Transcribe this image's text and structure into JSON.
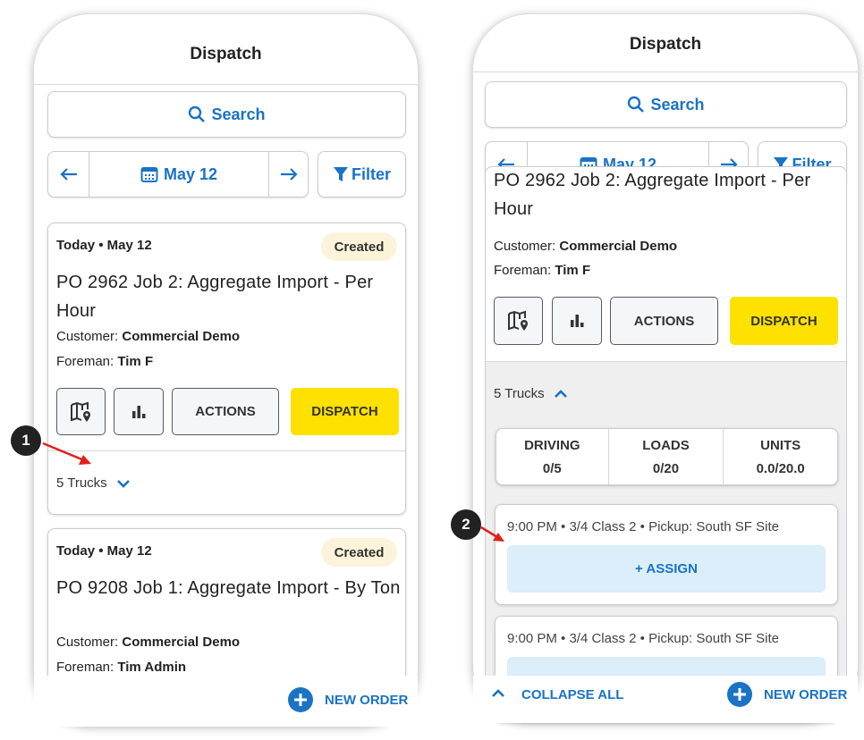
{
  "screens": [
    {
      "header": {
        "title": "Dispatch"
      },
      "toolbar": {
        "search": "Search",
        "date": "May 12",
        "filter": "Filter"
      },
      "orders": [
        {
          "date": "Today • May 12",
          "status": "Created",
          "title": "PO 2962 Job 2: Aggregate Import - Per Hour",
          "customer_label": "Customer:",
          "customer": "Commercial Demo",
          "foreman_label": "Foreman:",
          "foreman": "Tim F",
          "actions": "ACTIONS",
          "dispatch": "DISPATCH",
          "trucks": "5 Trucks"
        },
        {
          "date": "Today • May 12",
          "status": "Created",
          "title": "PO 9208 Job 1: Aggregate Import - By Ton",
          "customer_label": "Customer:",
          "customer": "Commercial Demo",
          "foreman_label": "Foreman:",
          "foreman": "Tim Admin"
        }
      ],
      "footer": {
        "new_order": "NEW ORDER"
      }
    },
    {
      "header": {
        "title": "Dispatch"
      },
      "toolbar": {
        "search": "Search",
        "date": "May 12",
        "filter": "Filter"
      },
      "orders": [
        {
          "title": "PO 2962 Job 2: Aggregate Import - Per Hour",
          "customer_label": "Customer:",
          "customer": "Commercial Demo",
          "foreman_label": "Foreman:",
          "foreman": "Tim F",
          "actions": "ACTIONS",
          "dispatch": "DISPATCH",
          "trucks": "5 Trucks",
          "stats": [
            {
              "label": "DRIVING",
              "value": "0/5"
            },
            {
              "label": "LOADS",
              "value": "0/20"
            },
            {
              "label": "UNITS",
              "value": "0.0/20.0"
            }
          ],
          "trips": [
            {
              "summary": "9:00 PM • 3/4 Class 2 • Pickup: South SF Site",
              "assign": "+ ASSIGN"
            },
            {
              "summary": "9:00 PM • 3/4 Class 2 • Pickup: South SF Site"
            }
          ]
        }
      ],
      "footer": {
        "collapse_all": "COLLAPSE ALL",
        "new_order": "NEW ORDER"
      }
    }
  ],
  "annotations": [
    "1",
    "2"
  ]
}
